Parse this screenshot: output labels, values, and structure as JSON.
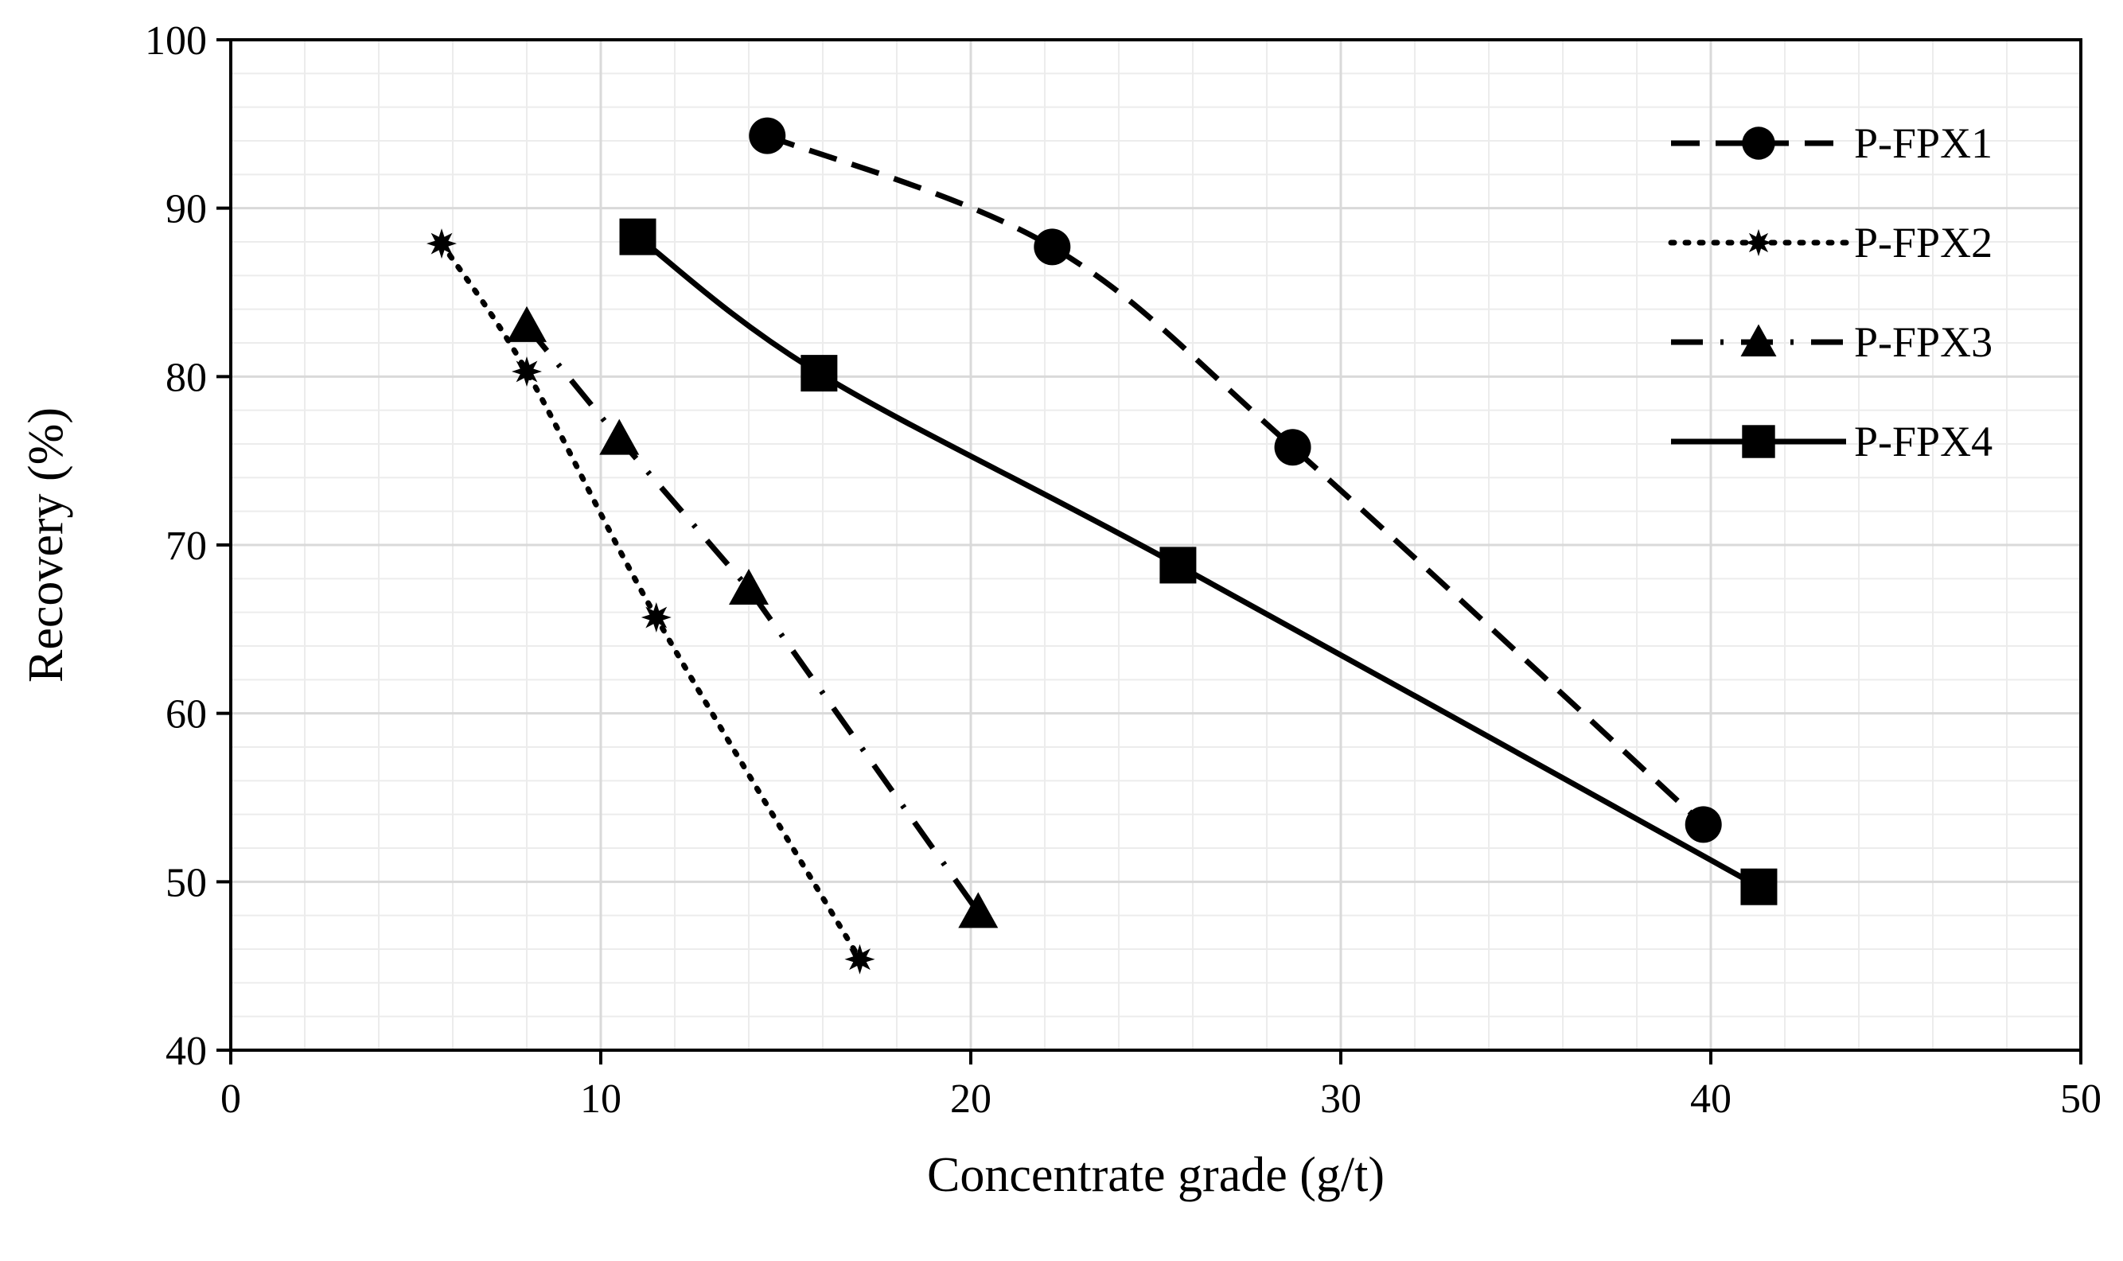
{
  "chart_data": {
    "type": "line",
    "title": "",
    "xlabel": "Concentrate grade (g/t)",
    "ylabel": "Recovery (%)",
    "xlim": [
      0,
      50
    ],
    "ylim": [
      40,
      100
    ],
    "x_ticks": [
      0,
      10,
      20,
      30,
      40,
      50
    ],
    "y_ticks": [
      40,
      50,
      60,
      70,
      80,
      90,
      100
    ],
    "x_tick_labels": [
      "0",
      "10",
      "20",
      "30",
      "40",
      "50"
    ],
    "y_tick_labels": [
      "40",
      "50",
      "60",
      "70",
      "80",
      "90",
      "100"
    ],
    "grid": true,
    "minor_grid": true,
    "legend_position": "top-right",
    "series": [
      {
        "name": "P-FPX1",
        "marker": "circle",
        "line": "dashed",
        "smooth": true,
        "x": [
          14.5,
          22.2,
          28.7,
          39.8
        ],
        "y": [
          94.3,
          87.7,
          75.8,
          53.4
        ]
      },
      {
        "name": "P-FPX2",
        "marker": "star",
        "line": "dotted",
        "smooth": true,
        "x": [
          5.7,
          8.0,
          11.5,
          17.0
        ],
        "y": [
          87.9,
          80.3,
          65.7,
          45.4
        ]
      },
      {
        "name": "P-FPX3",
        "marker": "triangle",
        "line": "dash-dot",
        "smooth": false,
        "x": [
          8.0,
          10.5,
          14.0,
          20.2
        ],
        "y": [
          83.0,
          76.3,
          67.4,
          48.2
        ]
      },
      {
        "name": "P-FPX4",
        "marker": "square",
        "line": "solid",
        "smooth": true,
        "x": [
          11.0,
          15.9,
          25.6,
          41.3
        ],
        "y": [
          88.3,
          80.2,
          68.8,
          49.7
        ]
      }
    ],
    "colors": {
      "series": "#000000",
      "grid_major": "#d9d9d9",
      "grid_minor": "#ececec",
      "axis": "#000000"
    }
  }
}
